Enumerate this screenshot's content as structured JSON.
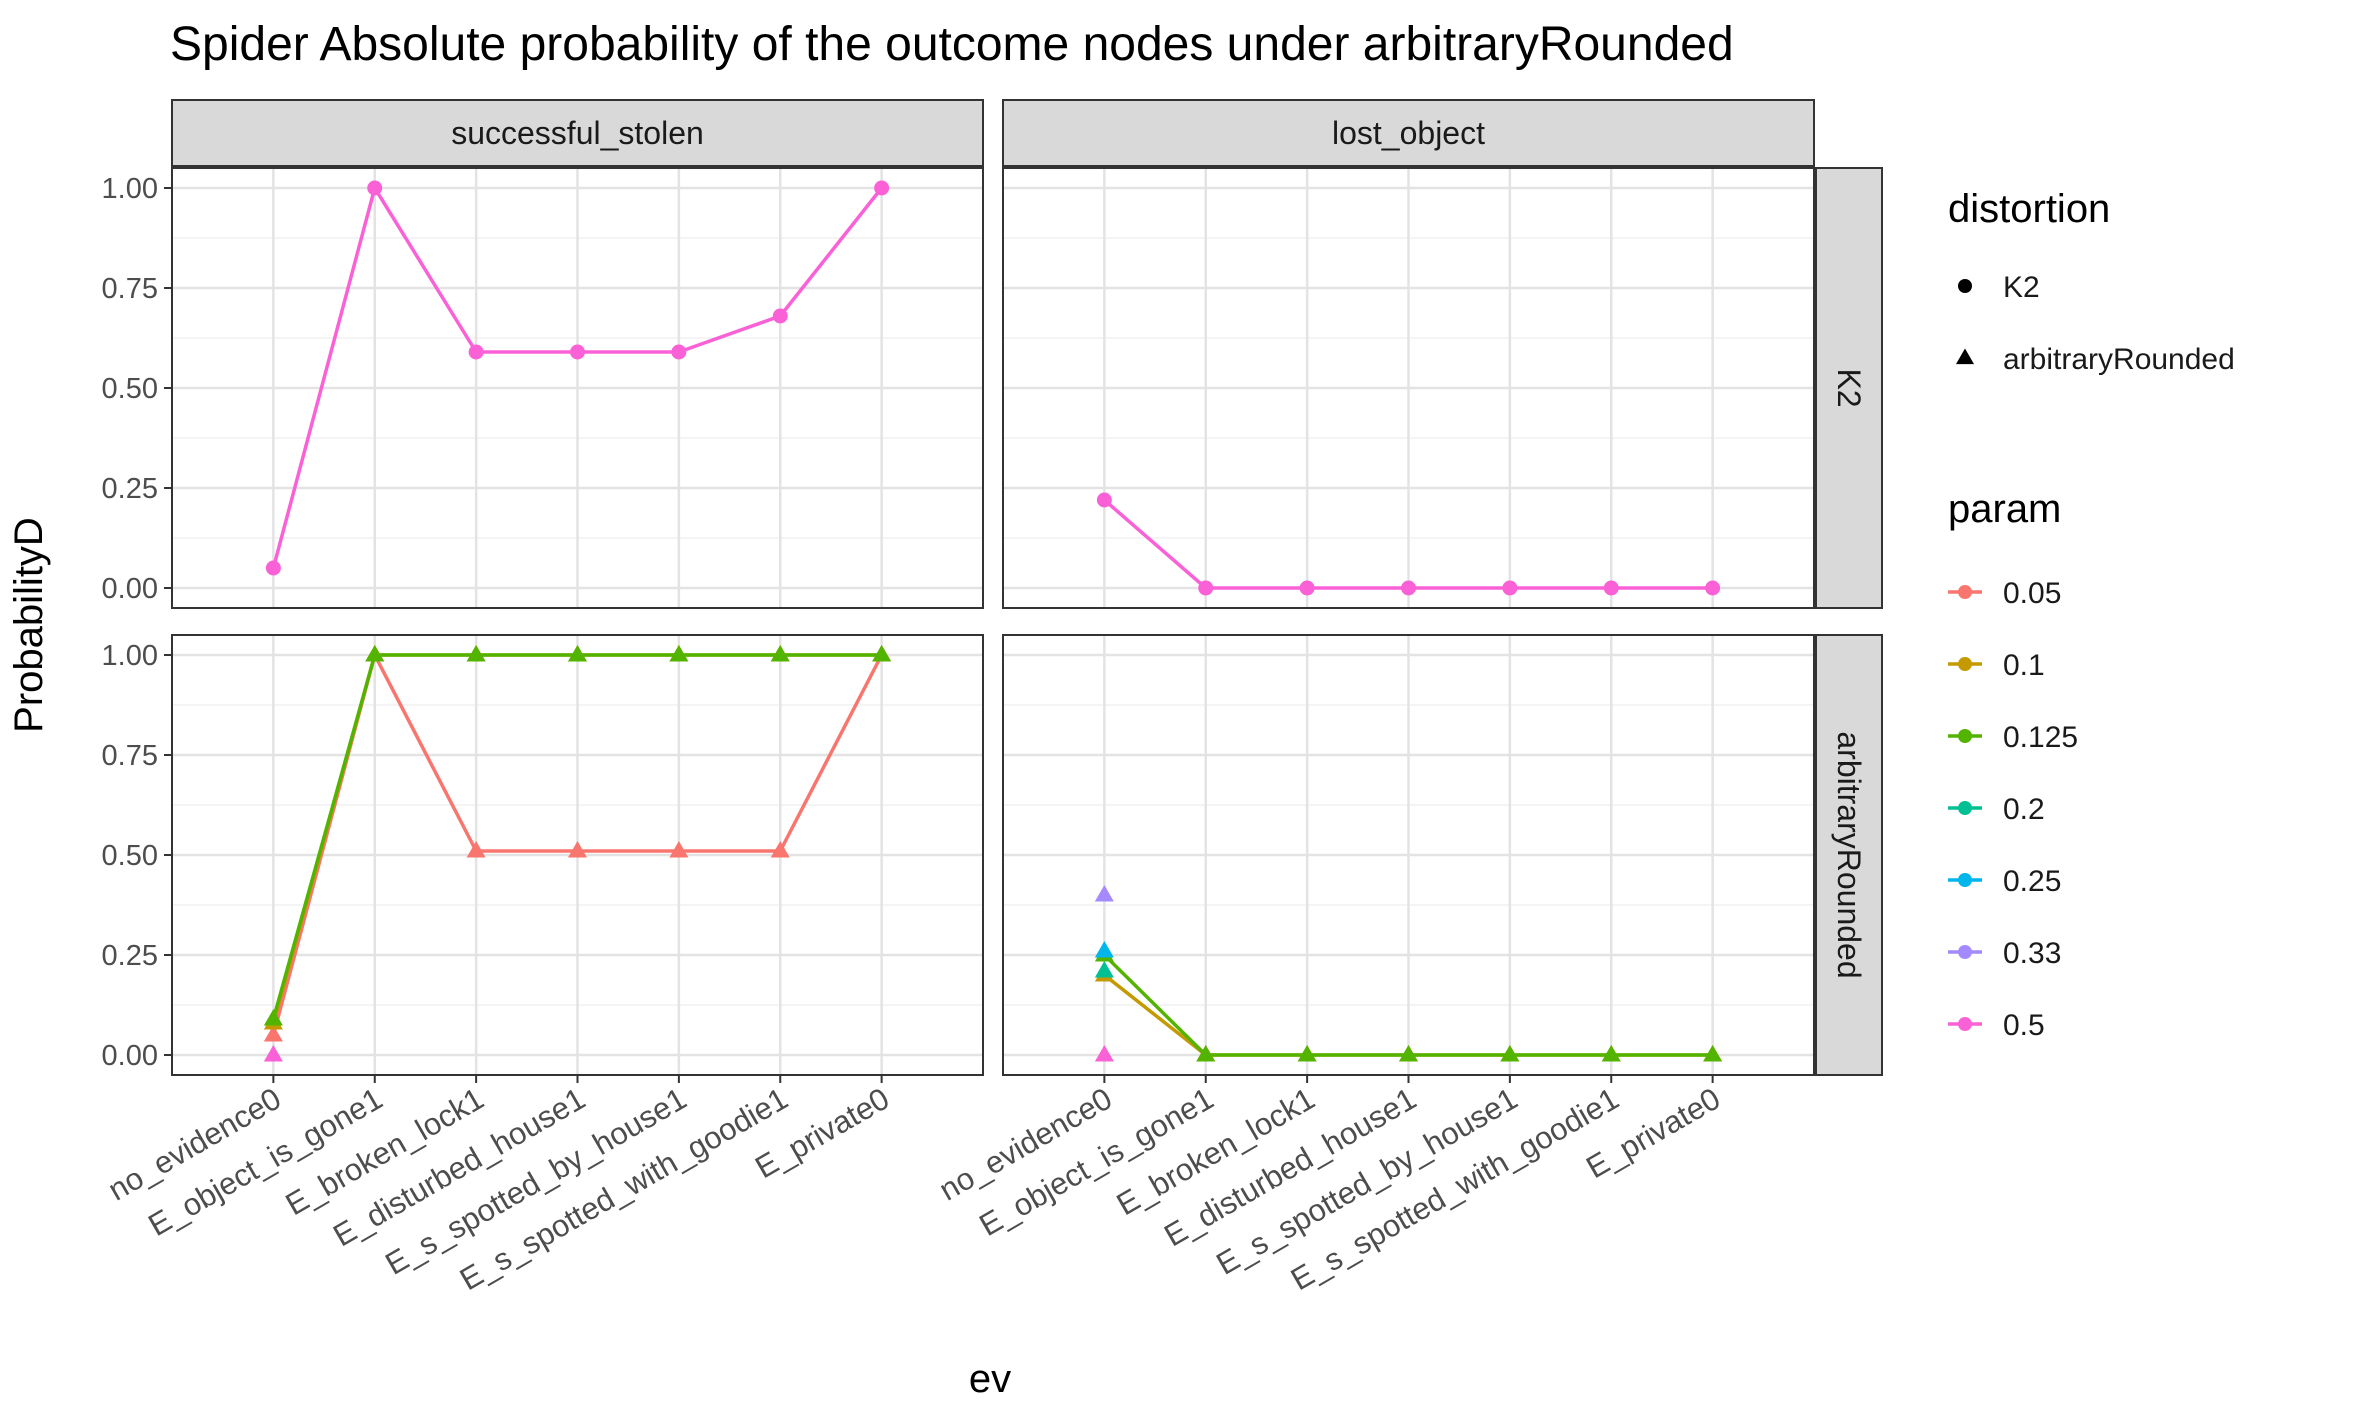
{
  "chart_data": {
    "type": "line",
    "title": "Spider Absolute probability of the outcome nodes under arbitraryRounded",
    "xlabel": "ev",
    "ylabel": "ProbabilityD",
    "ylim": [
      -0.05,
      1.05
    ],
    "yticks": [
      "0.00",
      "0.25",
      "0.50",
      "0.75",
      "1.00"
    ],
    "categories": [
      "no_evidence0",
      "E_object_is_gone1",
      "E_broken_lock1",
      "E_disturbed_house1",
      "E_s_spotted_by_house1",
      "E_s_spotted_with_goodie1",
      "E_private0"
    ],
    "facet_columns": [
      "successful_stolen",
      "lost_object"
    ],
    "facet_rows": [
      "K2",
      "arbitraryRounded"
    ],
    "grid": true,
    "legend_position": "right",
    "legend": {
      "distortion": {
        "title": "distortion",
        "items": [
          {
            "label": "K2",
            "shape": "circle"
          },
          {
            "label": "arbitraryRounded",
            "shape": "triangle"
          }
        ]
      },
      "param": {
        "title": "param",
        "items": [
          {
            "label": "0.05",
            "color": "#F8766D"
          },
          {
            "label": "0.1",
            "color": "#C49A00"
          },
          {
            "label": "0.125",
            "color": "#53B400"
          },
          {
            "label": "0.2",
            "color": "#00C094"
          },
          {
            "label": "0.25",
            "color": "#00B6EB"
          },
          {
            "label": "0.33",
            "color": "#A58AFF"
          },
          {
            "label": "0.5",
            "color": "#FB61D7"
          }
        ]
      }
    },
    "panels": [
      {
        "column": 0,
        "row": 0,
        "series": [
          {
            "param": "0.5",
            "shape": "circle",
            "values": [
              0.05,
              1.0,
              0.59,
              0.59,
              0.59,
              0.68,
              1.0
            ]
          }
        ]
      },
      {
        "column": 1,
        "row": 0,
        "series": [
          {
            "param": "0.5",
            "shape": "circle",
            "values": [
              0.22,
              0,
              0,
              0,
              0,
              0,
              0
            ]
          }
        ]
      },
      {
        "column": 0,
        "row": 1,
        "series": [
          {
            "param": "0.05",
            "shape": "triangle",
            "values": [
              0.05,
              1.0,
              0.51,
              0.51,
              0.51,
              0.51,
              1.0
            ]
          },
          {
            "param": "0.1",
            "shape": "triangle",
            "values": [
              0.08,
              1.0,
              1.0,
              1.0,
              1.0,
              1.0,
              1.0
            ]
          },
          {
            "param": "0.125",
            "shape": "triangle",
            "values": [
              0.09,
              1.0,
              1.0,
              1.0,
              1.0,
              1.0,
              1.0
            ]
          },
          {
            "param": "0.5",
            "shape": "triangle",
            "values": [
              0.0,
              null,
              null,
              null,
              null,
              null,
              null
            ]
          }
        ]
      },
      {
        "column": 1,
        "row": 1,
        "series": [
          {
            "param": "0.1",
            "shape": "triangle",
            "values": [
              0.2,
              0,
              0,
              0,
              0,
              0,
              0
            ]
          },
          {
            "param": "0.125",
            "shape": "triangle",
            "values": [
              0.25,
              0,
              0,
              0,
              0,
              0,
              0
            ]
          },
          {
            "param": "0.2",
            "shape": "triangle",
            "values": [
              0.21,
              null,
              null,
              null,
              null,
              null,
              null
            ]
          },
          {
            "param": "0.25",
            "shape": "triangle",
            "values": [
              0.26,
              null,
              null,
              null,
              null,
              null,
              null
            ]
          },
          {
            "param": "0.33",
            "shape": "triangle",
            "values": [
              0.4,
              null,
              null,
              null,
              null,
              null,
              null
            ]
          },
          {
            "param": "0.5",
            "shape": "triangle",
            "values": [
              0.0,
              null,
              null,
              null,
              null,
              null,
              null
            ]
          }
        ]
      }
    ]
  }
}
